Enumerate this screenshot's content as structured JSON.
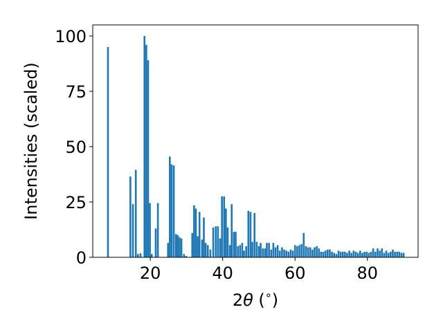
{
  "chart_data": {
    "type": "bar",
    "xlabel": "2θ (°)",
    "xlabel_main": "2",
    "xlabel_theta": "θ",
    "xlabel_unit": " (",
    "xlabel_degree": "∘",
    "xlabel_close": ")",
    "ylabel": "Intensities (scaled)",
    "xlim": [
      4.1,
      94.0
    ],
    "ylim": [
      0,
      105
    ],
    "xticks": [
      20,
      40,
      60,
      80
    ],
    "yticks": [
      0,
      25,
      50,
      75,
      100
    ],
    "bar_color": "#1f77b4",
    "bar_width": 0.5,
    "grid": false,
    "x": [
      8.3,
      14.5,
      15.2,
      16.0,
      16.6,
      17.3,
      18.4,
      18.9,
      19.4,
      19.9,
      20.4,
      21.5,
      22.1,
      24.9,
      25.4,
      25.9,
      26.5,
      27.1,
      27.6,
      28.1,
      28.6,
      29.3,
      29.9,
      31.6,
      32.1,
      32.6,
      33.1,
      33.6,
      34.3,
      34.8,
      35.3,
      35.9,
      36.6,
      37.4,
      38.1,
      38.7,
      39.3,
      39.8,
      40.4,
      40.9,
      41.4,
      42.0,
      42.5,
      43.1,
      43.6,
      44.2,
      44.8,
      45.4,
      45.9,
      46.5,
      47.1,
      47.7,
      48.2,
      48.8,
      49.4,
      50.0,
      50.5,
      51.1,
      51.7,
      52.2,
      52.8,
      53.4,
      54.0,
      54.6,
      55.2,
      55.8,
      56.4,
      57.0,
      57.6,
      58.2,
      58.8,
      59.4,
      60.0,
      60.6,
      61.2,
      61.8,
      62.4,
      63.0,
      63.6,
      64.2,
      64.8,
      65.4,
      66.0,
      66.6,
      67.2,
      67.8,
      68.4,
      69.0,
      69.6,
      70.2,
      70.8,
      71.4,
      72.0,
      72.6,
      73.2,
      73.8,
      74.4,
      75.0,
      75.6,
      76.2,
      76.8,
      77.4,
      78.0,
      78.6,
      79.2,
      79.8,
      80.4,
      81.0,
      81.6,
      82.2,
      82.8,
      83.4,
      84.0,
      84.6,
      85.2,
      85.8,
      86.4,
      87.0,
      87.6,
      88.2,
      88.8,
      89.4,
      90.0
    ],
    "values": [
      95,
      36.5,
      24,
      39.5,
      1.5,
      1.8,
      100,
      96,
      89,
      24.5,
      1.5,
      13,
      24.5,
      6.5,
      45.5,
      42,
      41.5,
      10.5,
      10,
      9,
      8.5,
      1.5,
      0.6,
      11,
      23.5,
      22,
      9.5,
      20.5,
      8,
      18,
      6.5,
      5.5,
      3.5,
      13.5,
      14,
      14,
      8.5,
      27.5,
      27.5,
      22,
      13.5,
      5.5,
      24,
      11.5,
      11.5,
      5,
      5.5,
      6.5,
      3,
      5,
      21,
      20.5,
      7,
      20,
      7,
      5,
      6.5,
      4,
      4,
      6.5,
      6.5,
      3.5,
      6.5,
      4.5,
      5.5,
      3,
      4.5,
      3.5,
      3,
      2.5,
      3.5,
      3,
      5.5,
      5,
      5.5,
      6,
      11,
      5,
      4.5,
      4.5,
      3.5,
      4.5,
      5,
      4,
      2.5,
      2.5,
      3,
      3.5,
      3.5,
      2.5,
      2,
      1.5,
      3,
      2.5,
      2.5,
      2.5,
      2,
      3,
      2,
      3,
      2.5,
      2,
      3,
      2,
      2.5,
      2.5,
      2,
      2.5,
      4,
      2.5,
      4,
      3,
      4,
      2,
      3,
      2,
      2.5,
      3.5,
      2.5,
      2.5,
      2.5,
      2,
      2
    ]
  }
}
